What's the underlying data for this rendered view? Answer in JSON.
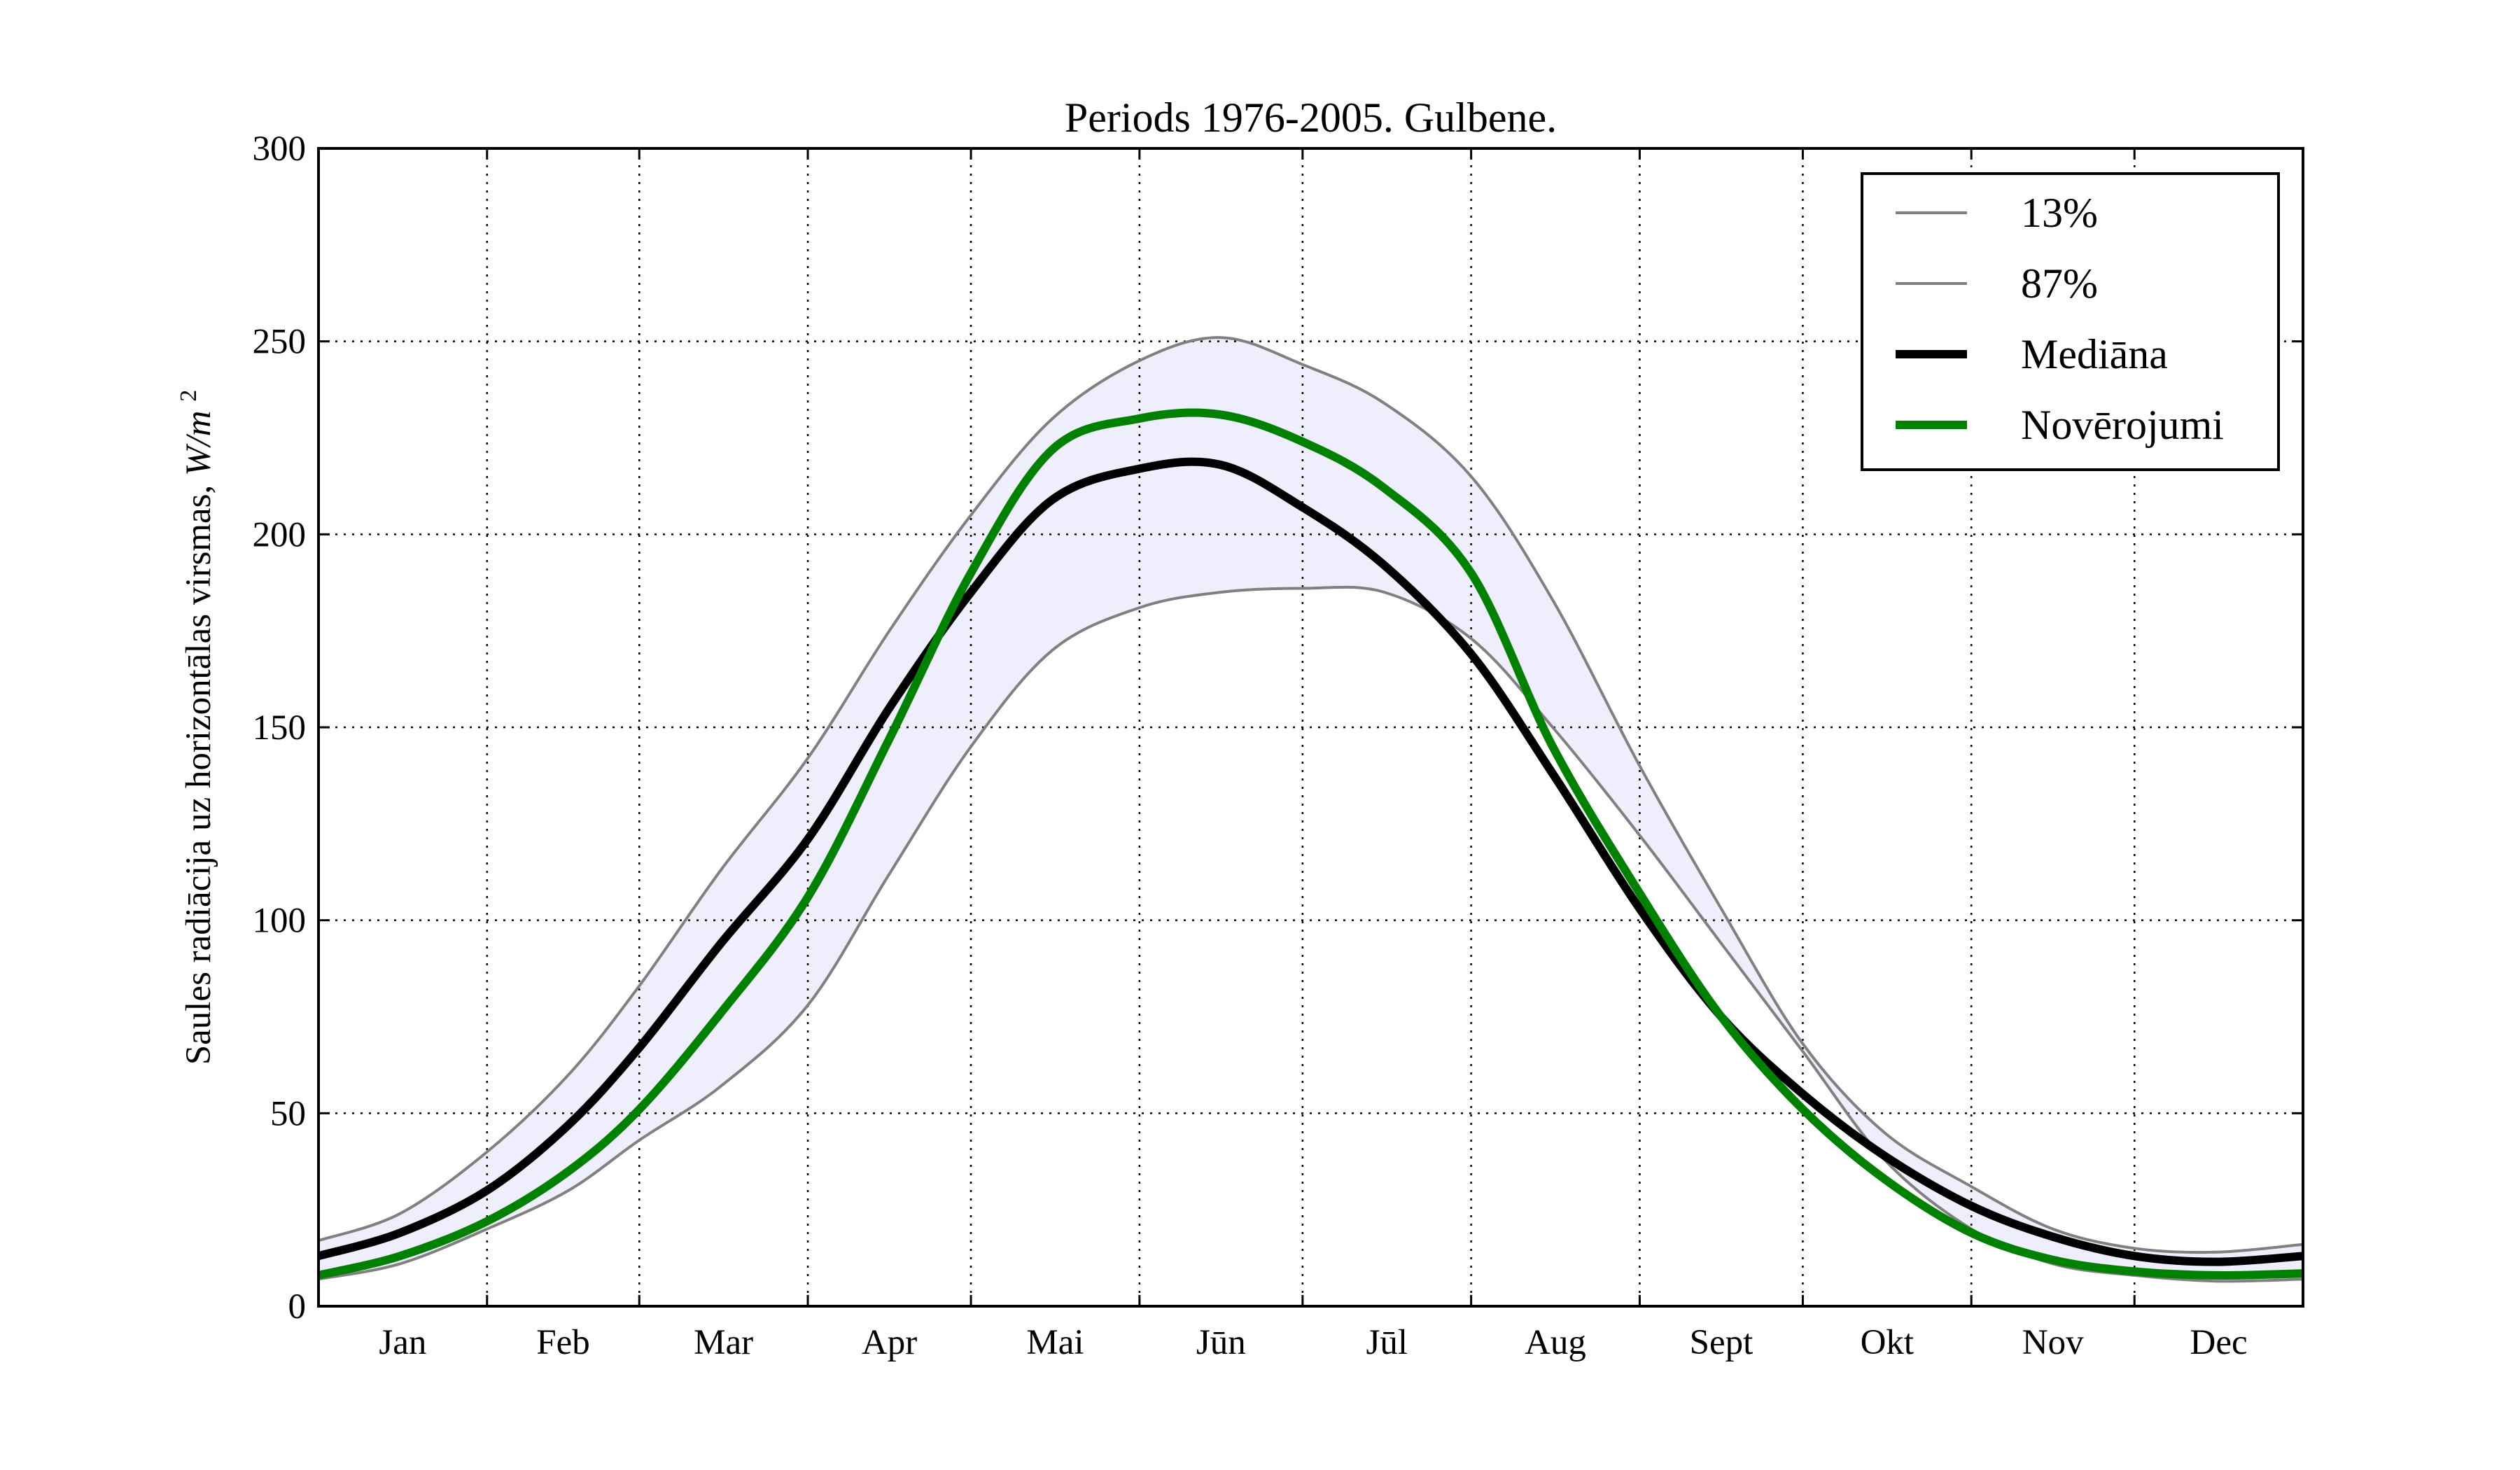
{
  "chart_data": {
    "type": "line",
    "title": "Periods 1976-2005. Gulbene.",
    "ylabel": "Saules radiācija uz horizontālas virsmas,",
    "ylabel_unit_base": "W/m",
    "ylabel_unit_exp": "2",
    "ylim": [
      0,
      300
    ],
    "yticks": [
      "0",
      "50",
      "100",
      "150",
      "200",
      "250",
      "300"
    ],
    "month_labels": [
      "Jan",
      "Feb",
      "Mar",
      "Apr",
      "Mai",
      "Jūn",
      "Jūl",
      "Aug",
      "Sept",
      "Okt",
      "Nov",
      "Dec"
    ],
    "xlim": [
      0,
      365
    ],
    "month_boundaries": [
      31,
      59,
      90,
      120,
      151,
      181,
      212,
      243,
      273,
      304,
      334
    ],
    "grid": true,
    "legend_position": "top-right",
    "band_fill": "#eeeefc",
    "x": [
      0,
      15,
      31,
      46,
      59,
      74,
      90,
      105,
      120,
      135,
      151,
      166,
      181,
      196,
      212,
      227,
      243,
      258,
      273,
      288,
      304,
      319,
      334,
      349,
      365
    ],
    "series": [
      {
        "name": "13%",
        "color": "#808080",
        "width": 4,
        "values": [
          7,
          11,
          20,
          30,
          43,
          57,
          78,
          112,
          145,
          170,
          181,
          185,
          186,
          185,
          173,
          150,
          122,
          94,
          66,
          38,
          20,
          11,
          8,
          6.5,
          7
        ]
      },
      {
        "name": "87%",
        "color": "#808080",
        "width": 4,
        "values": [
          17,
          24,
          40,
          60,
          83,
          113,
          142,
          175,
          205,
          230,
          245,
          251,
          244,
          234,
          215,
          183,
          140,
          103,
          68,
          45,
          31,
          20,
          15,
          14,
          16
        ]
      },
      {
        "name": "Mediāna",
        "color": "#000000",
        "width": 12,
        "values": [
          13,
          19,
          30,
          47,
          67,
          94,
          121,
          155,
          185,
          209,
          217,
          218,
          207,
          192,
          169,
          138,
          103,
          75,
          55,
          39,
          26,
          18,
          13,
          11.5,
          13
        ]
      },
      {
        "name": "Novērojumi",
        "color": "#008000",
        "width": 12,
        "values": [
          8,
          13,
          22,
          35,
          51,
          76,
          106,
          147,
          190,
          222,
          230,
          231,
          224,
          212,
          190,
          145,
          107,
          75,
          51,
          33,
          19,
          12,
          9,
          8,
          8.5
        ]
      }
    ]
  }
}
